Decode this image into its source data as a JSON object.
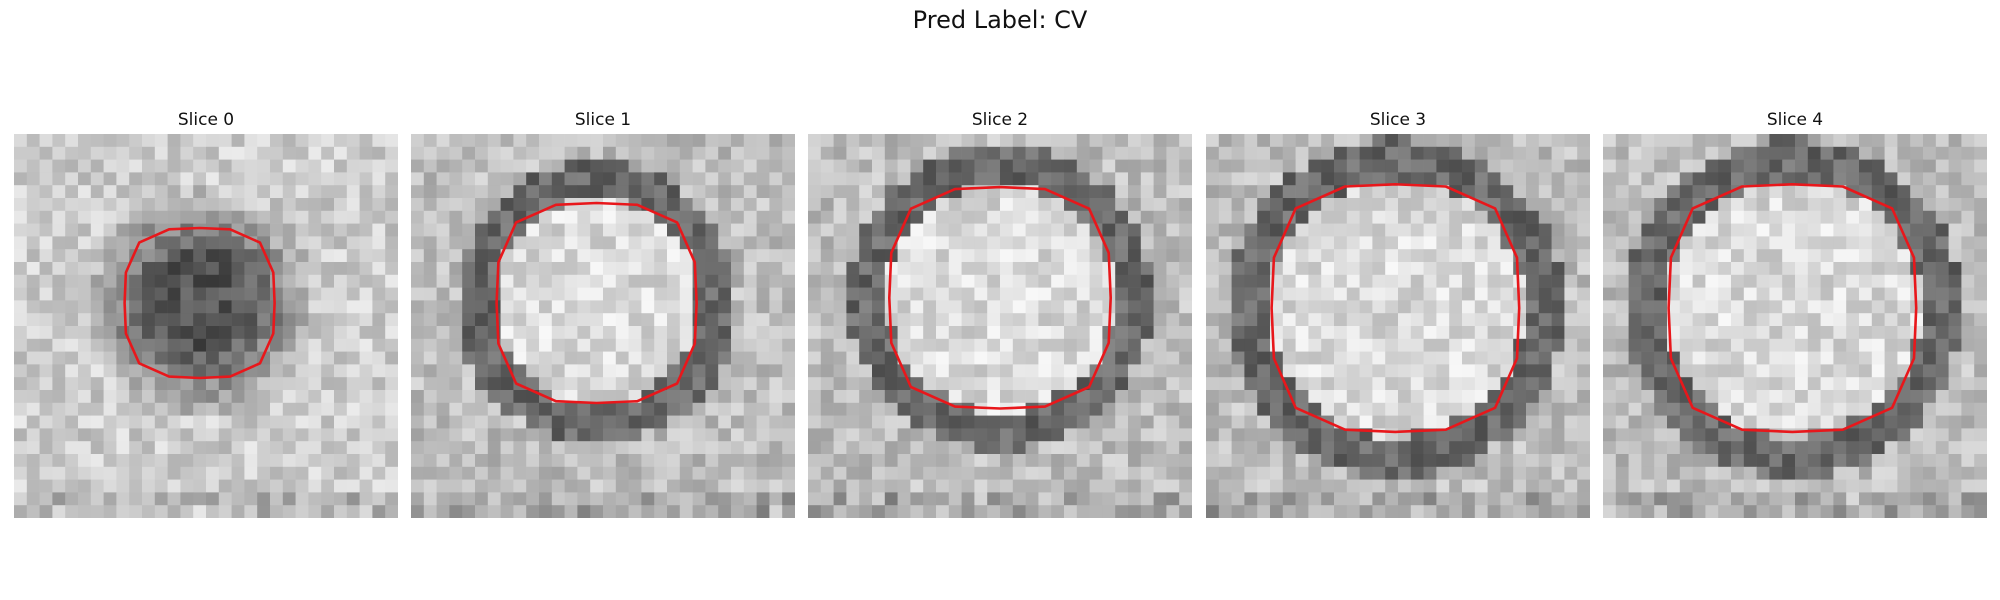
{
  "title": "Pred Label: CV",
  "colors": {
    "contour": "#e8171b",
    "colormap": "gray"
  },
  "slices": [
    {
      "label": "Slice 0",
      "region": "dark"
    },
    {
      "label": "Slice 1",
      "region": "bright"
    },
    {
      "label": "Slice 2",
      "region": "bright"
    },
    {
      "label": "Slice 3",
      "region": "bright"
    },
    {
      "label": "Slice 4",
      "region": "bright"
    }
  ]
}
